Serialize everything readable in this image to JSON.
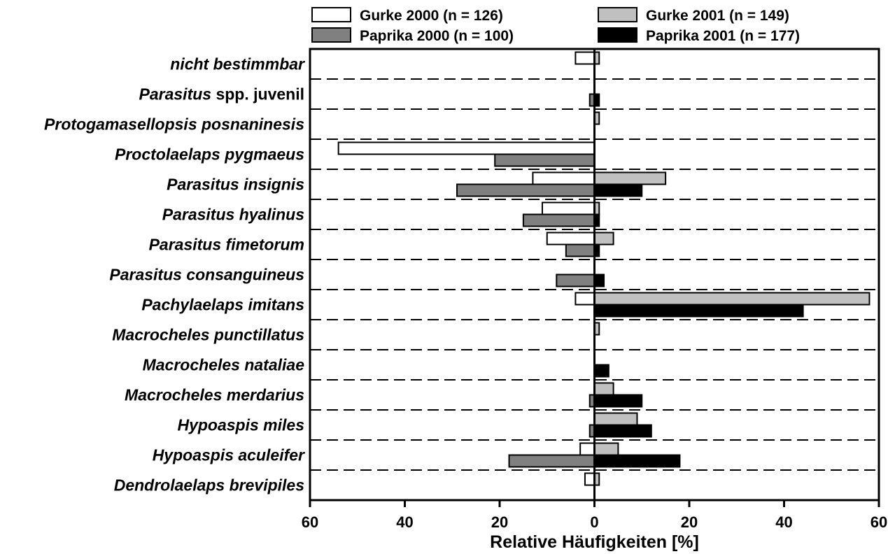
{
  "chart_data": {
    "type": "bar",
    "orientation": "horizontal",
    "xlabel": "Relative Häufigkeiten [%]",
    "xlim": [
      -60,
      60
    ],
    "x_ticks": [
      -60,
      -40,
      -20,
      0,
      20,
      40,
      60
    ],
    "x_tick_labels": [
      "60",
      "40",
      "20",
      "0",
      "20",
      "40",
      "60"
    ],
    "legend_placement": "top",
    "categories": [
      {
        "name": "nicht bestimmbar"
      },
      {
        "genus": "Parasitus",
        "rest": " spp. juvenil"
      },
      {
        "name": "Protogamasellopsis posnaninesis"
      },
      {
        "name": "Proctolaelaps pygmaeus"
      },
      {
        "name": "Parasitus insignis"
      },
      {
        "name": "Parasitus hyalinus"
      },
      {
        "name": "Parasitus fimetorum"
      },
      {
        "name": "Parasitus consanguineus"
      },
      {
        "name": "Pachylaelaps imitans"
      },
      {
        "name": "Macrocheles punctillatus"
      },
      {
        "name": "Macrocheles nataliae"
      },
      {
        "name": "Macrocheles merdarius"
      },
      {
        "name": "Hypoaspis miles"
      },
      {
        "name": "Hypoaspis aculeifer"
      },
      {
        "name": "Dendrolaelaps brevipiles"
      }
    ],
    "series": [
      {
        "name": "Gurke 2000 (n = 126)",
        "side": "left",
        "slot": "upper",
        "color": "#ffffff",
        "values": [
          4,
          0,
          0,
          54,
          13,
          11,
          10,
          0,
          4,
          0,
          0,
          0,
          0,
          3,
          2
        ]
      },
      {
        "name": "Paprika 2000 (n = 100)",
        "side": "left",
        "slot": "lower",
        "color": "#808080",
        "values": [
          0,
          1,
          0,
          21,
          29,
          15,
          6,
          8,
          0,
          0,
          0,
          1,
          1,
          18,
          0
        ]
      },
      {
        "name": "Gurke 2001 (n = 149)",
        "side": "right",
        "slot": "upper",
        "color": "#c0c0c0",
        "values": [
          1,
          0,
          1,
          0,
          15,
          1,
          4,
          0,
          58,
          1,
          0,
          4,
          9,
          5,
          1
        ]
      },
      {
        "name": "Paprika 2001 (n = 177)",
        "side": "right",
        "slot": "lower",
        "color": "#000000",
        "values": [
          0,
          1,
          0,
          0,
          10,
          1,
          1,
          2,
          44,
          0,
          3,
          10,
          12,
          18,
          0
        ]
      }
    ],
    "legend_order": [
      0,
      2,
      1,
      3
    ]
  }
}
